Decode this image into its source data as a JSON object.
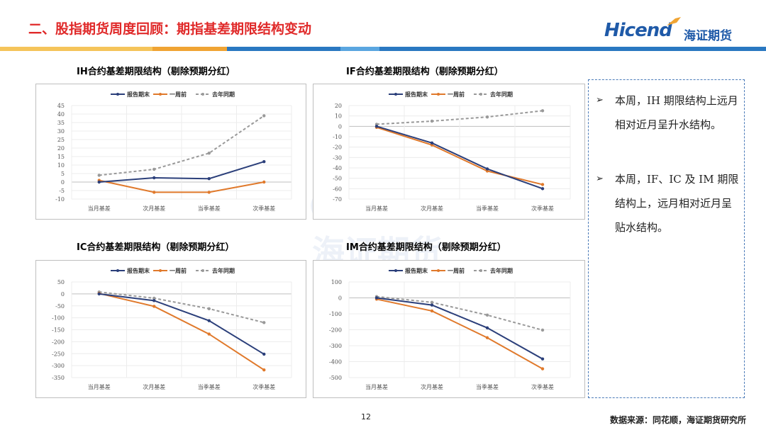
{
  "header": {
    "title": "二、股指期货周度回顾：期指基差期限结构变动",
    "logo_text": "Hicend",
    "logo_cn": "海证期货"
  },
  "colors": {
    "title": "#e02a2a",
    "report_end": "#2b3f7a",
    "week_ago": "#e0792b",
    "last_year": "#999999",
    "bar_blue": "#2a78c1",
    "bar_orange": "#f0a433"
  },
  "watermark": {
    "text_en": "Hicend",
    "text_cn": "海证期货"
  },
  "chart_data": [
    {
      "type": "line",
      "title": "IH合约基差期限结构（剔除预期分红）",
      "categories": [
        "当月基差",
        "次月基差",
        "当季基差",
        "次季基差"
      ],
      "legend": {
        "placement": "top"
      },
      "series": [
        {
          "name": "报告期末",
          "values": [
            0,
            2.5,
            2,
            12
          ]
        },
        {
          "name": "一周前",
          "values": [
            1,
            -6,
            -6,
            0
          ]
        },
        {
          "name": "去年同期",
          "values": [
            4,
            7.5,
            17,
            39
          ]
        }
      ],
      "ylim": [
        -10,
        45
      ],
      "yticks": [
        -10,
        -5,
        0,
        5,
        10,
        15,
        20,
        25,
        30,
        35,
        40,
        45
      ],
      "ytick_labels": [
        "-10",
        "-5",
        "0",
        "5",
        "10",
        "15",
        "20",
        "25",
        "30",
        "35",
        "40",
        "45"
      ]
    },
    {
      "type": "line",
      "title": "IF合约基差期限结构（剔除预期分红）",
      "categories": [
        "当月基差",
        "次月基差",
        "当季基差",
        "次季基差"
      ],
      "legend": {
        "placement": "top"
      },
      "series": [
        {
          "name": "报告期末",
          "values": [
            0,
            -16,
            -41,
            -60
          ]
        },
        {
          "name": "一周前",
          "values": [
            -1,
            -18,
            -43,
            -56
          ]
        },
        {
          "name": "去年同期",
          "values": [
            2,
            5,
            9,
            15
          ]
        }
      ],
      "ylim": [
        -70,
        20
      ],
      "yticks": [
        -70,
        -60,
        -50,
        -40,
        -30,
        -20,
        -10,
        0,
        10,
        20
      ],
      "ytick_labels": [
        "-70",
        "-60",
        "-50",
        "-40",
        "-30",
        "-20",
        "-10",
        "0",
        "10",
        "20"
      ]
    },
    {
      "type": "line",
      "title": "IC合约基差期限结构（剔除预期分红）",
      "categories": [
        "当月基差",
        "次月基差",
        "当季基差",
        "次季基差"
      ],
      "legend": {
        "placement": "top"
      },
      "series": [
        {
          "name": "报告期末",
          "values": [
            0,
            -28,
            -112,
            -252
          ]
        },
        {
          "name": "一周前",
          "values": [
            2,
            -52,
            -168,
            -318
          ]
        },
        {
          "name": "去年同期",
          "values": [
            8,
            -18,
            -62,
            -120
          ]
        }
      ],
      "ylim": [
        -350,
        50
      ],
      "yticks": [
        -350,
        -300,
        -250,
        -200,
        -150,
        -100,
        -50,
        0,
        50
      ],
      "ytick_labels": [
        "-350",
        "-300",
        "-250",
        "-200",
        "-150",
        "-100",
        "-50",
        "0",
        "50"
      ]
    },
    {
      "type": "line",
      "title": "IM合约基差期限结构（剔除预期分红）",
      "categories": [
        "当月基差",
        "次月基差",
        "当季基差",
        "次季基差"
      ],
      "legend": {
        "placement": "top"
      },
      "series": [
        {
          "name": "报告期末",
          "values": [
            0,
            -45,
            -188,
            -383
          ]
        },
        {
          "name": "一周前",
          "values": [
            -8,
            -82,
            -250,
            -445
          ]
        },
        {
          "name": "去年同期",
          "values": [
            8,
            -28,
            -108,
            -202
          ]
        }
      ],
      "ylim": [
        -500,
        100
      ],
      "yticks": [
        -500,
        -400,
        -300,
        -200,
        -100,
        0,
        100
      ],
      "ytick_labels": [
        "-500",
        "-400",
        "-300",
        "-200",
        "-100",
        "0",
        "100"
      ]
    }
  ],
  "notes": [
    {
      "bullet": "➢",
      "text": "本周，IH 期限结构上远月相对近月呈升水结构。"
    },
    {
      "bullet": "➢",
      "text": "本周，IF、IC 及 IM 期限结构上，远月相对近月呈贴水结构。"
    }
  ],
  "footer": {
    "page_number": "12",
    "source": "数据来源：同花顺，海证期货研究所"
  }
}
